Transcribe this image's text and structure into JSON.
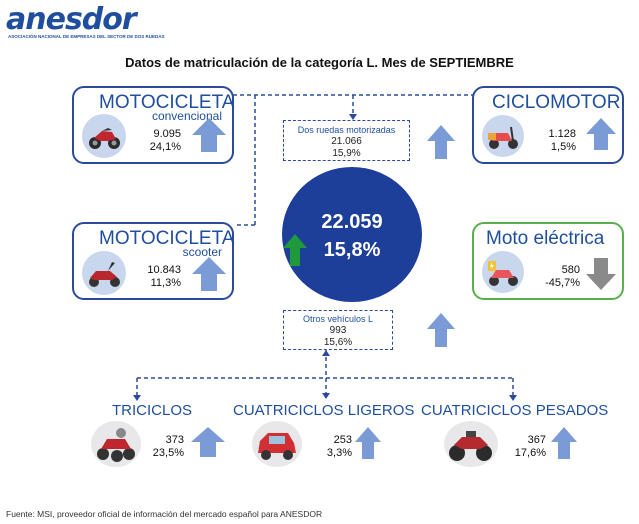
{
  "logo": {
    "name": "anesdor",
    "subtitle": "ASOCIACIÓN NACIONAL DE EMPRESAS DEL SECTOR DE DOS RUEDAS"
  },
  "title": "Datos de matriculación de la categoría L. Mes de SEPTIEMBRE",
  "colors": {
    "primary": "#2c4a9a",
    "circle": "#1d3e99",
    "green_border": "#5aaf4c",
    "up_arrow": "#7a9bd6",
    "down_arrow": "#8a8a8a",
    "green_arrow": "#1e9a3c"
  },
  "total": {
    "value": "22.059",
    "percent": "15,8%",
    "trend": "up"
  },
  "moto_convencional": {
    "title": "MOTOCICLETA",
    "subtitle": "convencional",
    "value": "9.095",
    "percent": "24,1%",
    "icon": "motorcycle-icon"
  },
  "moto_scooter": {
    "title": "MOTOCICLETA",
    "subtitle": "scooter",
    "value": "10.843",
    "percent": "11,3%",
    "icon": "scooter-icon"
  },
  "ciclomotor": {
    "title": "CICLOMOTOR",
    "value": "1.128",
    "percent": "1,5%",
    "icon": "moped-icon"
  },
  "moto_electrica": {
    "title": "Moto eléctrica",
    "value": "580",
    "percent": "-45,7%",
    "icon": "electric-moped-icon",
    "trend": "down"
  },
  "dos_ruedas": {
    "label": "Dos ruedas motorizadas",
    "value": "21.066",
    "percent": "15,9%"
  },
  "otros": {
    "label": "Otros vehículos L",
    "value": "993",
    "percent": "15,6%"
  },
  "triciclos": {
    "title": "TRICICLOS",
    "value": "373",
    "percent": "23,5%",
    "icon": "tricycle-icon"
  },
  "cuatriciclos_ligeros": {
    "title": "CUATRICICLOS LIGEROS",
    "value": "253",
    "percent": "3,3%",
    "icon": "microcar-icon"
  },
  "cuatriciclos_pesados": {
    "title": "CUATRICICLOS PESADOS",
    "value": "367",
    "percent": "17,6%",
    "icon": "atv-icon"
  },
  "footer": "Fuente: MSI, proveedor oficial de información del mercado español para ANESDOR"
}
